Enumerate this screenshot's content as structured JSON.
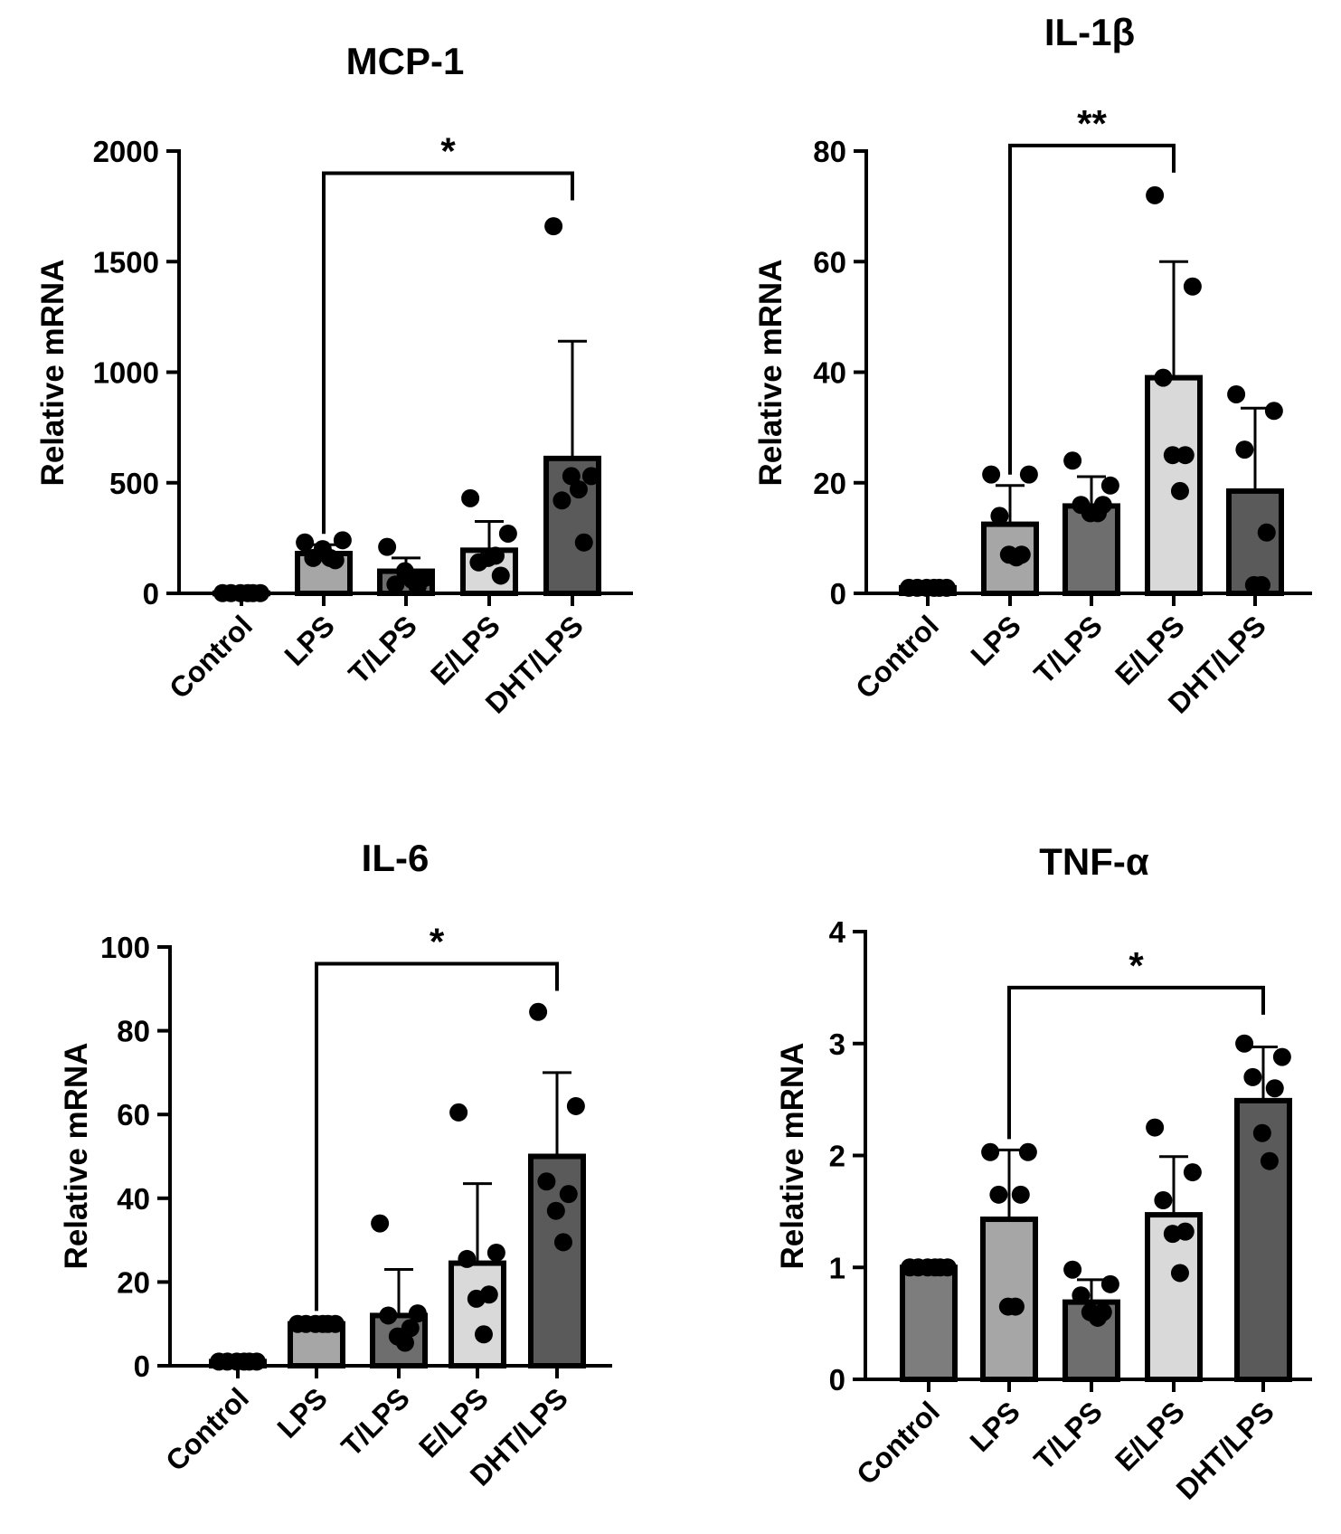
{
  "chart_data": [
    {
      "type": "bar",
      "title": "MCP-1",
      "xlabel": "",
      "ylabel": "Relative mRNA",
      "ylim": [
        0,
        2000
      ],
      "yticks": [
        0,
        500,
        1000,
        1500,
        2000
      ],
      "categories": [
        "Control",
        "LPS",
        "T/LPS",
        "E/LPS",
        "DHT/LPS"
      ],
      "values": [
        1,
        180,
        100,
        195,
        610
      ],
      "errors": [
        0,
        40,
        60,
        130,
        530
      ],
      "points": [
        [
          1,
          1,
          1,
          1,
          1,
          1
        ],
        [
          230,
          240,
          160,
          150,
          200,
          160
        ],
        [
          210,
          70,
          40,
          30,
          100,
          60
        ],
        [
          430,
          270,
          140,
          80,
          160,
          170
        ],
        [
          1660,
          530,
          420,
          230,
          530,
          470
        ]
      ],
      "bar_colors": [
        "#7d7d7d",
        "#a6a6a6",
        "#6e6e6e",
        "#d9d9d9",
        "#5a5a5a"
      ],
      "significance": {
        "from": "LPS",
        "to": "DHT/LPS",
        "y": 1900,
        "label": "*"
      }
    },
    {
      "type": "bar",
      "title": "IL-1β",
      "xlabel": "",
      "ylabel": "Relative mRNA",
      "ylim": [
        0,
        80
      ],
      "yticks": [
        0,
        20,
        40,
        60,
        80
      ],
      "categories": [
        "Control",
        "LPS",
        "T/LPS",
        "E/LPS",
        "DHT/LPS"
      ],
      "values": [
        1,
        12.5,
        15.8,
        39,
        18.5
      ],
      "errors": [
        0.3,
        7,
        5.3,
        21,
        15
      ],
      "points": [
        [
          1,
          1,
          1,
          1,
          1,
          1
        ],
        [
          21.5,
          21.5,
          14,
          7,
          7,
          6.5
        ],
        [
          24,
          19.5,
          16,
          16,
          14.5,
          14.5
        ],
        [
          72,
          55.5,
          39,
          25,
          25,
          18.5
        ],
        [
          36,
          33,
          26,
          11,
          1.5,
          1.5
        ]
      ],
      "bar_colors": [
        "#7d7d7d",
        "#a6a6a6",
        "#6e6e6e",
        "#d9d9d9",
        "#5a5a5a"
      ],
      "significance": {
        "from": "LPS",
        "to": "E/LPS",
        "y": 81,
        "label": "**"
      }
    },
    {
      "type": "bar",
      "title": "IL-6",
      "xlabel": "",
      "ylabel": "Relative mRNA",
      "ylim": [
        0,
        100
      ],
      "yticks": [
        0,
        20,
        40,
        60,
        80,
        100
      ],
      "categories": [
        "Control",
        "LPS",
        "T/LPS",
        "E/LPS",
        "DHT/LPS"
      ],
      "values": [
        1,
        10,
        12,
        24.5,
        50
      ],
      "errors": [
        0,
        0.5,
        11,
        19,
        20
      ],
      "points": [
        [
          1,
          1,
          1,
          1,
          1,
          1
        ],
        [
          10,
          10,
          10,
          10,
          10,
          10
        ],
        [
          34,
          12.5,
          12,
          9,
          7,
          5.5
        ],
        [
          60.5,
          27,
          25.5,
          17,
          16,
          7.5
        ],
        [
          84.5,
          62,
          44,
          41,
          37,
          29.5
        ]
      ],
      "bar_colors": [
        "#7d7d7d",
        "#a6a6a6",
        "#6e6e6e",
        "#d9d9d9",
        "#5a5a5a"
      ],
      "significance": {
        "from": "LPS",
        "to": "DHT/LPS",
        "y": 96,
        "label": "*"
      }
    },
    {
      "type": "bar",
      "title": "TNF-α",
      "xlabel": "",
      "ylabel": "Relative mRNA",
      "ylim": [
        0,
        4
      ],
      "yticks": [
        0,
        1,
        2,
        3,
        4
      ],
      "categories": [
        "Control",
        "LPS",
        "T/LPS",
        "E/LPS",
        "DHT/LPS"
      ],
      "values": [
        1,
        1.43,
        0.69,
        1.47,
        2.49
      ],
      "errors": [
        0,
        0.62,
        0.2,
        0.52,
        0.48
      ],
      "points": [
        [
          1,
          1,
          1,
          1,
          1,
          1
        ],
        [
          2.03,
          2.03,
          1.65,
          1.65,
          0.65,
          0.65
        ],
        [
          0.98,
          0.85,
          0.75,
          0.6,
          0.6,
          0.55
        ],
        [
          2.25,
          1.85,
          1.6,
          1.32,
          1.3,
          0.95
        ],
        [
          3,
          2.88,
          2.7,
          2.6,
          2.2,
          1.95
        ]
      ],
      "bar_colors": [
        "#7d7d7d",
        "#a6a6a6",
        "#6e6e6e",
        "#d9d9d9",
        "#5a5a5a"
      ],
      "significance": {
        "from": "LPS",
        "to": "DHT/LPS",
        "y": 3.5,
        "label": "*"
      }
    }
  ]
}
